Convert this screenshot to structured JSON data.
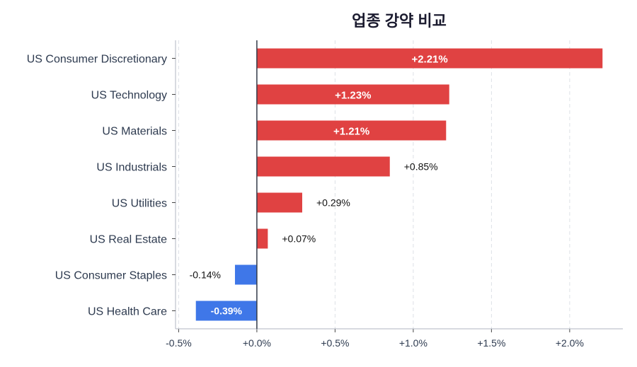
{
  "chart_data": {
    "type": "bar",
    "orientation": "horizontal",
    "title": "업종 강약 비교",
    "categories": [
      "US Consumer Discretionary",
      "US Technology",
      "US Materials",
      "US Industrials",
      "US Utilities",
      "US Real Estate",
      "US Consumer Staples",
      "US Health Care"
    ],
    "values": [
      2.21,
      1.23,
      1.21,
      0.85,
      0.29,
      0.07,
      -0.14,
      -0.39
    ],
    "labels": [
      "+2.21%",
      "+1.23%",
      "+1.21%",
      "+0.85%",
      "+0.29%",
      "+0.07%",
      "-0.14%",
      "-0.39%"
    ],
    "xticks": [
      "-0.5%",
      "+0.0%",
      "+0.5%",
      "+1.0%",
      "+1.5%",
      "+2.0%"
    ],
    "xtick_values": [
      -0.5,
      0,
      0.5,
      1.0,
      1.5,
      2.0
    ],
    "xlim": [
      -0.52,
      2.34
    ],
    "grid": "x dashed",
    "colors": {
      "positive": "#e04242",
      "negative": "#3f77e8"
    }
  }
}
